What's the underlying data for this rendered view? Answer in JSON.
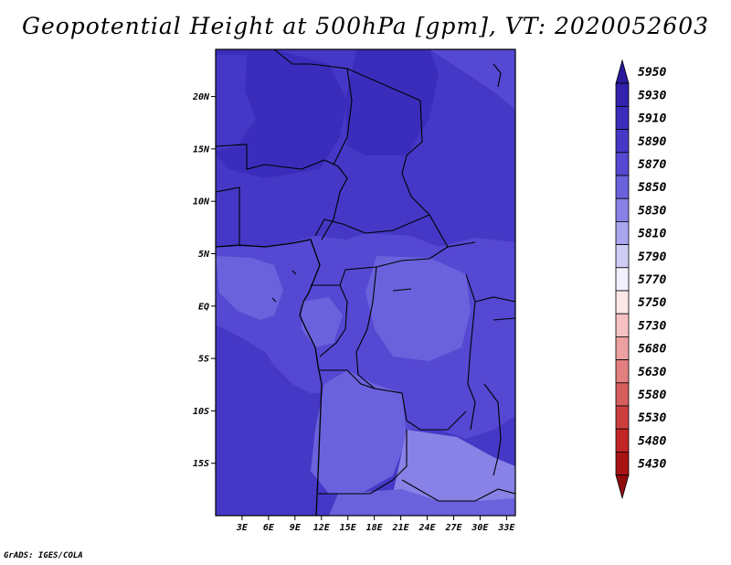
{
  "title": "Geopotential Height at 500hPa [gpm], VT: 2020052603",
  "credit": "GrADS: IGES/COLA",
  "map": {
    "lon_range": [
      0,
      34
    ],
    "lat_range": [
      -20,
      24.5
    ],
    "lat_ticks": [
      {
        "value": 20,
        "label": "20N"
      },
      {
        "value": 15,
        "label": "15N"
      },
      {
        "value": 10,
        "label": "10N"
      },
      {
        "value": 5,
        "label": "5N"
      },
      {
        "value": 0,
        "label": "EQ"
      },
      {
        "value": -5,
        "label": "5S"
      },
      {
        "value": -10,
        "label": "10S"
      },
      {
        "value": -15,
        "label": "15S"
      }
    ],
    "lon_ticks": [
      {
        "value": 3,
        "label": "3E"
      },
      {
        "value": 6,
        "label": "6E"
      },
      {
        "value": 9,
        "label": "9E"
      },
      {
        "value": 12,
        "label": "12E"
      },
      {
        "value": 15,
        "label": "15E"
      },
      {
        "value": 18,
        "label": "18E"
      },
      {
        "value": 21,
        "label": "21E"
      },
      {
        "value": 24,
        "label": "24E"
      },
      {
        "value": 27,
        "label": "27E"
      },
      {
        "value": 30,
        "label": "30E"
      },
      {
        "value": 33,
        "label": "33E"
      }
    ]
  },
  "colorbar": {
    "levels": [
      "5950",
      "5930",
      "5910",
      "5890",
      "5870",
      "5850",
      "5830",
      "5810",
      "5790",
      "5770",
      "5750",
      "5730",
      "5680",
      "5630",
      "5580",
      "5530",
      "5480",
      "5430"
    ],
    "colors": [
      "#2a1a9c",
      "#3322ad",
      "#3b2dbc",
      "#4538c6",
      "#5548d2",
      "#6a62dc",
      "#8882e6",
      "#a9a5ee",
      "#cfcdf6",
      "#f2f1fd",
      "#fde8e8",
      "#f7c2c2",
      "#eda0a0",
      "#e37f7f",
      "#d85e5e",
      "#cd3f3f",
      "#c22525",
      "#a81414",
      "#8f0c0c"
    ]
  }
}
